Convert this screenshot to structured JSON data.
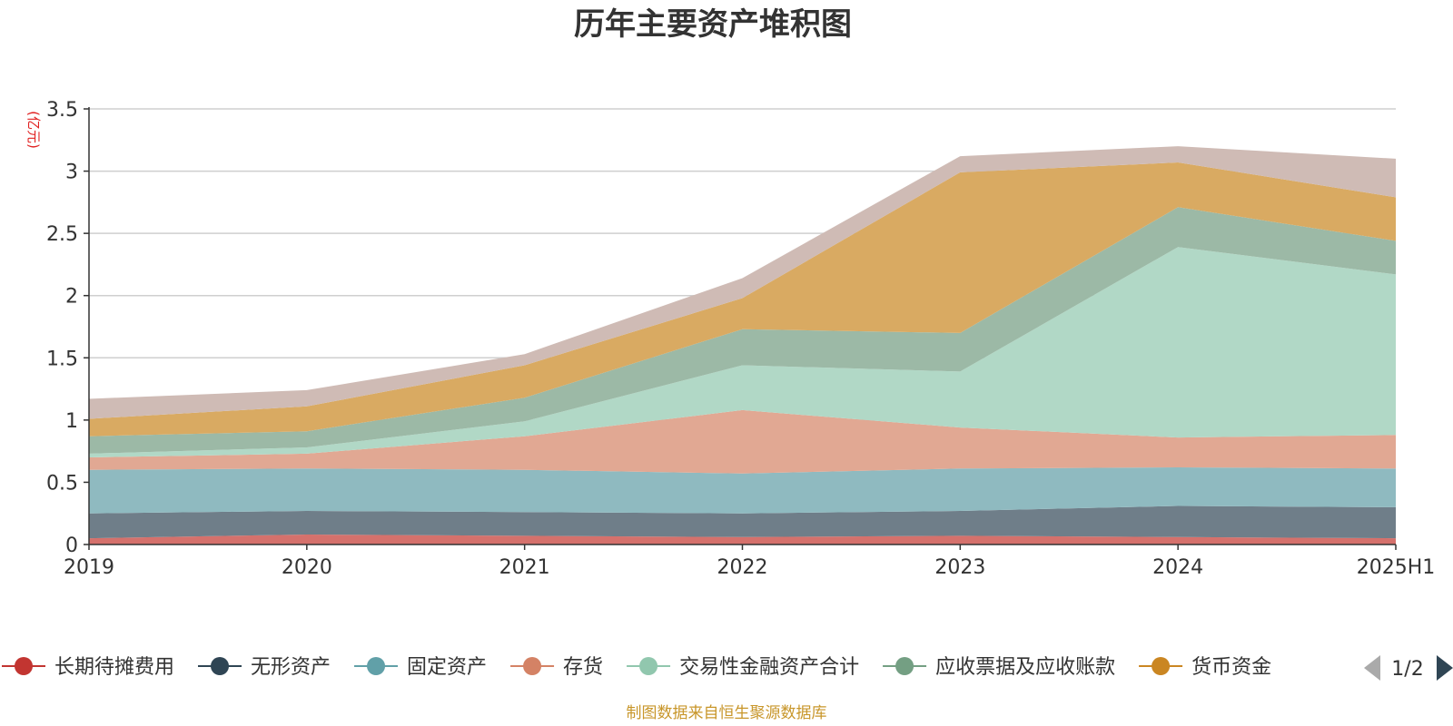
{
  "chart_data": {
    "type": "area",
    "stacked": true,
    "title": "历年主要资产堆积图",
    "unit_label": "(亿元)",
    "categories": [
      "2019",
      "2020",
      "2021",
      "2022",
      "2023",
      "2024",
      "2025H1"
    ],
    "ylim": [
      0,
      3.5
    ],
    "yticks": [
      "0",
      "0.5",
      "1",
      "1.5",
      "2",
      "2.5",
      "3",
      "3.5"
    ],
    "grid": true,
    "legend_position": "bottom",
    "series": [
      {
        "name": "长期待摊费用",
        "color": "#c23531",
        "fill": "#d5716c",
        "values": [
          0.05,
          0.08,
          0.07,
          0.06,
          0.07,
          0.06,
          0.05
        ]
      },
      {
        "name": "无形资产",
        "color": "#2f4554",
        "fill": "#6f7e89",
        "values": [
          0.2,
          0.19,
          0.19,
          0.19,
          0.2,
          0.25,
          0.25
        ]
      },
      {
        "name": "固定资产",
        "color": "#61a0a8",
        "fill": "#8fbac0",
        "values": [
          0.35,
          0.34,
          0.34,
          0.32,
          0.34,
          0.31,
          0.31
        ]
      },
      {
        "name": "存货",
        "color": "#d48265",
        "fill": "#e1a893",
        "values": [
          0.1,
          0.12,
          0.27,
          0.51,
          0.33,
          0.24,
          0.27
        ]
      },
      {
        "name": "交易性金融资产合计",
        "color": "#91c7ae",
        "fill": "#b1d8c6",
        "values": [
          0.03,
          0.05,
          0.12,
          0.36,
          0.45,
          1.53,
          1.29
        ]
      },
      {
        "name": "应收票据及应收账款",
        "color": "#749f83",
        "fill": "#9cb9a6",
        "values": [
          0.14,
          0.13,
          0.19,
          0.29,
          0.31,
          0.32,
          0.27
        ]
      },
      {
        "name": "货币资金",
        "color": "#ca8622",
        "fill": "#d9aa62",
        "values": [
          0.14,
          0.2,
          0.26,
          0.25,
          1.29,
          0.36,
          0.35
        ]
      },
      {
        "name": "",
        "color": "#bda29a",
        "fill": "#cfbbb5",
        "values": [
          0.16,
          0.13,
          0.09,
          0.16,
          0.13,
          0.13,
          0.31
        ]
      }
    ]
  },
  "legend": {
    "page": "1/2",
    "prev_icon": "triangle-left-icon",
    "next_icon": "triangle-right-icon"
  },
  "footer": {
    "source": "制图数据来自恒生聚源数据库"
  }
}
